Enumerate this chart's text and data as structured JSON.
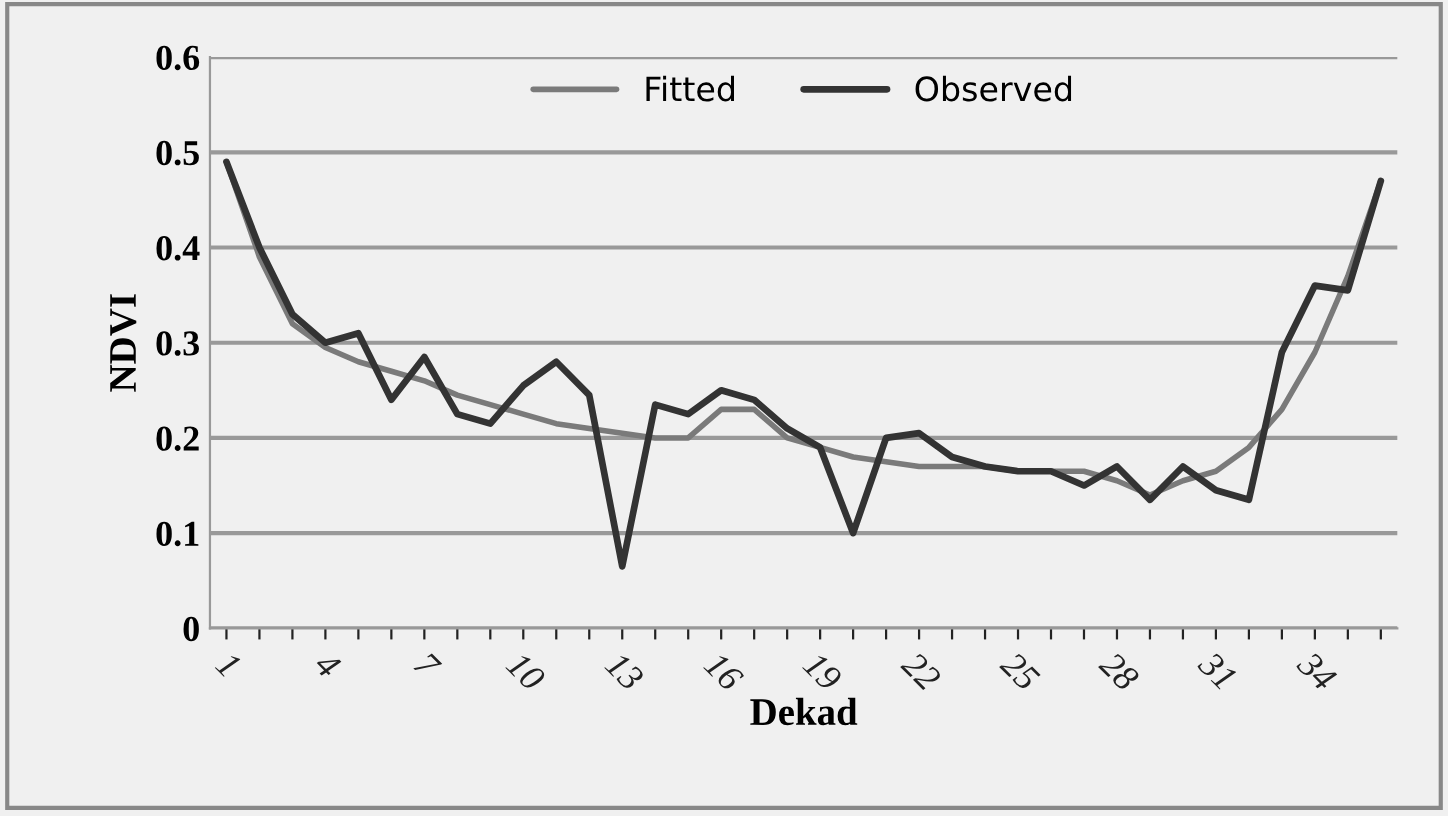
{
  "chart_data": {
    "type": "line",
    "xlabel": "Dekad",
    "ylabel": "NDVI",
    "categories": [
      "1",
      null,
      null,
      "4",
      null,
      null,
      "7",
      null,
      null,
      "10",
      null,
      null,
      "13",
      null,
      null,
      "16",
      null,
      null,
      "19",
      null,
      null,
      "22",
      null,
      null,
      "25",
      null,
      null,
      "28",
      null,
      null,
      "31",
      null,
      null,
      "34",
      null,
      null
    ],
    "series": [
      {
        "name": "Fitted",
        "color": "#7a7a7a",
        "values": [
          0.49,
          0.39,
          0.32,
          0.295,
          0.28,
          0.27,
          0.26,
          0.245,
          0.235,
          0.225,
          0.215,
          0.21,
          0.205,
          0.2,
          0.2,
          0.23,
          0.23,
          0.2,
          0.19,
          0.18,
          0.175,
          0.17,
          0.17,
          0.17,
          0.165,
          0.165,
          0.165,
          0.155,
          0.14,
          0.155,
          0.165,
          0.19,
          0.23,
          0.29,
          0.37,
          0.47
        ]
      },
      {
        "name": "Observed",
        "color": "#333333",
        "values": [
          0.49,
          0.4,
          0.33,
          0.3,
          0.31,
          0.24,
          0.285,
          0.225,
          0.215,
          0.255,
          0.28,
          0.245,
          0.065,
          0.235,
          0.225,
          0.25,
          0.24,
          0.21,
          0.19,
          0.1,
          0.2,
          0.205,
          0.18,
          0.17,
          0.165,
          0.165,
          0.15,
          0.17,
          0.135,
          0.17,
          0.145,
          0.135,
          0.29,
          0.36,
          0.355,
          0.47
        ]
      }
    ],
    "ylim": [
      0,
      0.6
    ],
    "yticks": [
      0,
      0.1,
      0.2,
      0.3,
      0.4,
      0.5,
      0.6
    ],
    "grid": "y",
    "legend": "top",
    "marker": "none",
    "line_style": "solid"
  }
}
